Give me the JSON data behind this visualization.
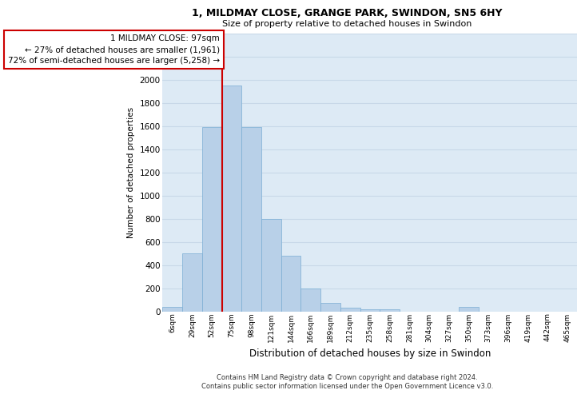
{
  "title_line1": "1, MILDMAY CLOSE, GRANGE PARK, SWINDON, SN5 6HY",
  "title_line2": "Size of property relative to detached houses in Swindon",
  "xlabel": "Distribution of detached houses by size in Swindon",
  "ylabel": "Number of detached properties",
  "categories": [
    "6sqm",
    "29sqm",
    "52sqm",
    "75sqm",
    "98sqm",
    "121sqm",
    "144sqm",
    "166sqm",
    "189sqm",
    "212sqm",
    "235sqm",
    "258sqm",
    "281sqm",
    "304sqm",
    "327sqm",
    "350sqm",
    "373sqm",
    "396sqm",
    "419sqm",
    "442sqm",
    "465sqm"
  ],
  "bar_heights": [
    40,
    500,
    1590,
    1950,
    1590,
    800,
    480,
    195,
    75,
    30,
    15,
    15,
    0,
    0,
    0,
    40,
    0,
    0,
    0,
    0,
    0
  ],
  "bar_color": "#b8d0e8",
  "bar_edge_color": "#7aaed4",
  "annotation_text_line1": "1 MILDMAY CLOSE: 97sqm",
  "annotation_text_line2": "← 27% of detached houses are smaller (1,961)",
  "annotation_text_line3": "72% of semi-detached houses are larger (5,258) →",
  "box_edge_color": "#cc0000",
  "vline_color": "#cc0000",
  "vline_x": 2.5,
  "ylim_max": 2400,
  "ytick_step": 200,
  "grid_color": "#c8d8e8",
  "bg_color": "#ddeaf5",
  "footer1": "Contains HM Land Registry data © Crown copyright and database right 2024.",
  "footer2": "Contains public sector information licensed under the Open Government Licence v3.0."
}
